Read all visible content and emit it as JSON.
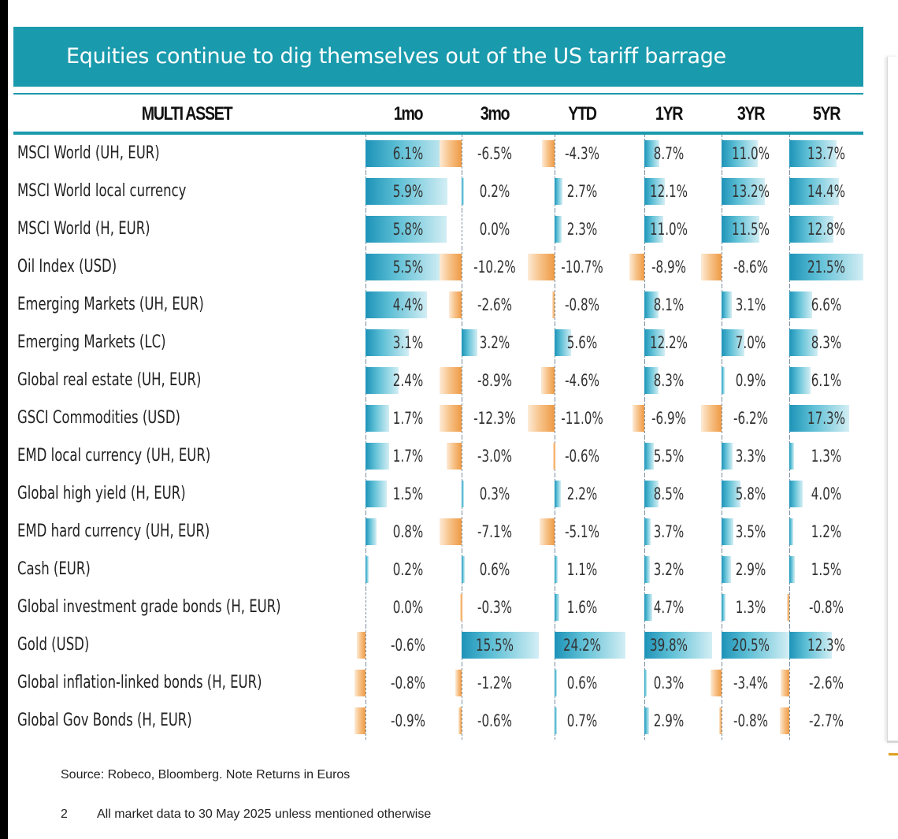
{
  "slide": {
    "title": "Equities continue to dig themselves out of the US tariff barrage",
    "source_prefix": "Source: ",
    "source_text": "Robeco, Bloomberg. Note Returns in Euros",
    "page_number": "2",
    "footnote": "All market data to 30 May 2025 unless mentioned otherwise"
  },
  "colors": {
    "title_bar": "#1a9aad",
    "positive_bar": "#1d93b8",
    "negative_bar": "#ee9a44"
  },
  "table": {
    "header_label": "MULTI ASSET",
    "columns": [
      "1mo",
      "3mo",
      "YTD",
      "1YR",
      "3YR",
      "5YR"
    ],
    "rows": [
      {
        "name": "MSCI World (UH, EUR)",
        "labels": [
          "6.1%",
          "-6.5%",
          "-4.3%",
          "8.7%",
          "11.0%",
          "13.7%"
        ],
        "values": [
          6.1,
          -6.5,
          -4.3,
          8.7,
          11.0,
          13.7
        ]
      },
      {
        "name": "MSCI World local currency",
        "labels": [
          "5.9%",
          "0.2%",
          "2.7%",
          "12.1%",
          "13.2%",
          "14.4%"
        ],
        "values": [
          5.9,
          0.2,
          2.7,
          12.1,
          13.2,
          14.4
        ]
      },
      {
        "name": "MSCI World (H, EUR)",
        "labels": [
          "5.8%",
          "0.0%",
          "2.3%",
          "11.0%",
          "11.5%",
          "12.8%"
        ],
        "values": [
          5.8,
          0.0,
          2.3,
          11.0,
          11.5,
          12.8
        ]
      },
      {
        "name": "Oil Index (USD)",
        "labels": [
          "5.5%",
          "-10.2%",
          "-10.7%",
          "-8.9%",
          "-8.6%",
          "21.5%"
        ],
        "values": [
          5.5,
          -10.2,
          -10.7,
          -8.9,
          -8.6,
          21.5
        ]
      },
      {
        "name": "Emerging Markets (UH, EUR)",
        "labels": [
          "4.4%",
          "-2.6%",
          "-0.8%",
          "8.1%",
          "3.1%",
          "6.6%"
        ],
        "values": [
          4.4,
          -2.6,
          -0.8,
          8.1,
          3.1,
          6.6
        ]
      },
      {
        "name": "Emerging Markets (LC)",
        "labels": [
          "3.1%",
          "3.2%",
          "5.6%",
          "12.2%",
          "7.0%",
          "8.3%"
        ],
        "values": [
          3.1,
          3.2,
          5.6,
          12.2,
          7.0,
          8.3
        ]
      },
      {
        "name": "Global real estate (UH, EUR)",
        "labels": [
          "2.4%",
          "-8.9%",
          "-4.6%",
          "8.3%",
          "0.9%",
          "6.1%"
        ],
        "values": [
          2.4,
          -8.9,
          -4.6,
          8.3,
          0.9,
          6.1
        ]
      },
      {
        "name": "GSCI Commodities (USD)",
        "labels": [
          "1.7%",
          "-12.3%",
          "-11.0%",
          "-6.9%",
          "-6.2%",
          "17.3%"
        ],
        "values": [
          1.7,
          -12.3,
          -11.0,
          -6.9,
          -6.2,
          17.3
        ]
      },
      {
        "name": "EMD local currency (UH, EUR)",
        "labels": [
          "1.7%",
          "-3.0%",
          "-0.6%",
          "5.5%",
          "3.3%",
          "1.3%"
        ],
        "values": [
          1.7,
          -3.0,
          -0.6,
          5.5,
          3.3,
          1.3
        ]
      },
      {
        "name": "Global high yield (H, EUR)",
        "labels": [
          "1.5%",
          "0.3%",
          "2.2%",
          "8.5%",
          "5.8%",
          "4.0%"
        ],
        "values": [
          1.5,
          0.3,
          2.2,
          8.5,
          5.8,
          4.0
        ]
      },
      {
        "name": "EMD hard currency (UH, EUR)",
        "labels": [
          "0.8%",
          "-7.1%",
          "-5.1%",
          "3.7%",
          "3.5%",
          "1.2%"
        ],
        "values": [
          0.8,
          -7.1,
          -5.1,
          3.7,
          3.5,
          1.2
        ]
      },
      {
        "name": "Cash (EUR)",
        "labels": [
          "0.2%",
          "0.6%",
          "1.1%",
          "3.2%",
          "2.9%",
          "1.5%"
        ],
        "values": [
          0.2,
          0.6,
          1.1,
          3.2,
          2.9,
          1.5
        ]
      },
      {
        "name": "Global investment grade bonds (H, EUR)",
        "labels": [
          "0.0%",
          "-0.3%",
          "1.6%",
          "4.7%",
          "1.3%",
          "-0.8%"
        ],
        "values": [
          0.0,
          -0.3,
          1.6,
          4.7,
          1.3,
          -0.8
        ]
      },
      {
        "name": "Gold (USD)",
        "labels": [
          "-0.6%",
          "15.5%",
          "24.2%",
          "39.8%",
          "20.5%",
          "12.3%"
        ],
        "values": [
          -0.6,
          15.5,
          24.2,
          39.8,
          20.5,
          12.3
        ]
      },
      {
        "name": "Global inflation-linked bonds (H, EUR)",
        "labels": [
          "-0.8%",
          "-1.2%",
          "0.6%",
          "0.3%",
          "-3.4%",
          "-2.6%"
        ],
        "values": [
          -0.8,
          -1.2,
          0.6,
          0.3,
          -3.4,
          -2.6
        ]
      },
      {
        "name": "Global Gov Bonds (H, EUR)",
        "labels": [
          "-0.9%",
          "-0.6%",
          "0.7%",
          "2.9%",
          "-0.8%",
          "-2.7%"
        ],
        "values": [
          -0.9,
          -0.6,
          0.7,
          2.9,
          -0.8,
          -2.7
        ]
      }
    ]
  }
}
